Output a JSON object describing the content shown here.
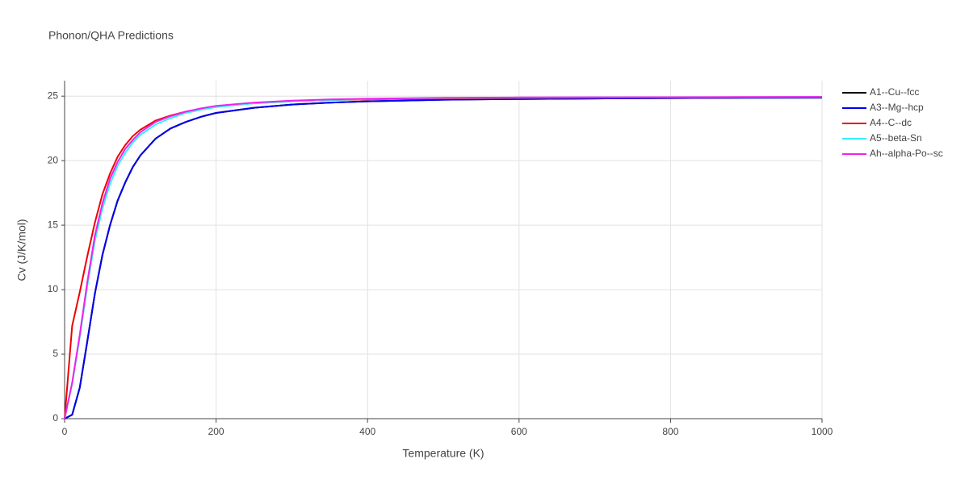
{
  "chart_data": {
    "type": "line",
    "title": "Phonon/QHA Predictions",
    "x_label": "Temperature (K)",
    "y_label": "Cv (J/K/mol)",
    "x": [
      0,
      10,
      20,
      30,
      40,
      50,
      60,
      70,
      80,
      90,
      100,
      120,
      140,
      160,
      180,
      200,
      250,
      300,
      350,
      400,
      500,
      600,
      700,
      800,
      900,
      1000
    ],
    "series": [
      {
        "name": "A1--Cu--fcc",
        "color": "#000000",
        "values": [
          0,
          0.3,
          2.4,
          6,
          9.7,
          12.7,
          15.0,
          16.9,
          18.3,
          19.5,
          20.4,
          21.7,
          22.5,
          23.0,
          23.4,
          23.7,
          24.1,
          24.35,
          24.5,
          24.6,
          24.72,
          24.78,
          24.82,
          24.85,
          24.87,
          24.88
        ]
      },
      {
        "name": "A3--Mg--hcp",
        "color": "#0000ee",
        "values": [
          0,
          0.3,
          2.4,
          6,
          9.7,
          12.7,
          15.0,
          16.9,
          18.3,
          19.5,
          20.4,
          21.7,
          22.5,
          23.0,
          23.4,
          23.7,
          24.1,
          24.35,
          24.5,
          24.6,
          24.72,
          24.78,
          24.82,
          24.85,
          24.87,
          24.88
        ]
      },
      {
        "name": "A4--C--dc",
        "color": "#ee0000",
        "values": [
          0,
          7.2,
          9.8,
          12.6,
          15.2,
          17.4,
          19.0,
          20.3,
          21.2,
          21.9,
          22.4,
          23.1,
          23.5,
          23.8,
          24.0,
          24.2,
          24.45,
          24.6,
          24.7,
          24.75,
          24.82,
          24.86,
          24.88,
          24.9,
          24.91,
          24.92
        ]
      },
      {
        "name": "A5--beta-Sn",
        "color": "#33eeff",
        "values": [
          0,
          2.7,
          6.3,
          10.3,
          13.8,
          16.3,
          18.2,
          19.6,
          20.6,
          21.4,
          22.0,
          22.8,
          23.3,
          23.7,
          23.95,
          24.15,
          24.45,
          24.6,
          24.7,
          24.78,
          24.85,
          24.88,
          24.9,
          24.91,
          24.92,
          24.93
        ]
      },
      {
        "name": "Ah--alpha-Po--sc",
        "color": "#ee22ee",
        "values": [
          0,
          2.8,
          6.5,
          10.6,
          14.2,
          16.7,
          18.6,
          19.9,
          20.9,
          21.6,
          22.2,
          23.0,
          23.45,
          23.8,
          24.05,
          24.25,
          24.5,
          24.65,
          24.75,
          24.8,
          24.87,
          24.9,
          24.91,
          24.92,
          24.93,
          24.94
        ]
      }
    ],
    "xlim": [
      0,
      1000
    ],
    "xticks": [
      0,
      200,
      400,
      600,
      800,
      1000
    ],
    "ylim": [
      0,
      26.2
    ],
    "yticks": [
      0,
      5,
      10,
      15,
      20,
      25
    ],
    "grid": true,
    "legend": "right"
  }
}
